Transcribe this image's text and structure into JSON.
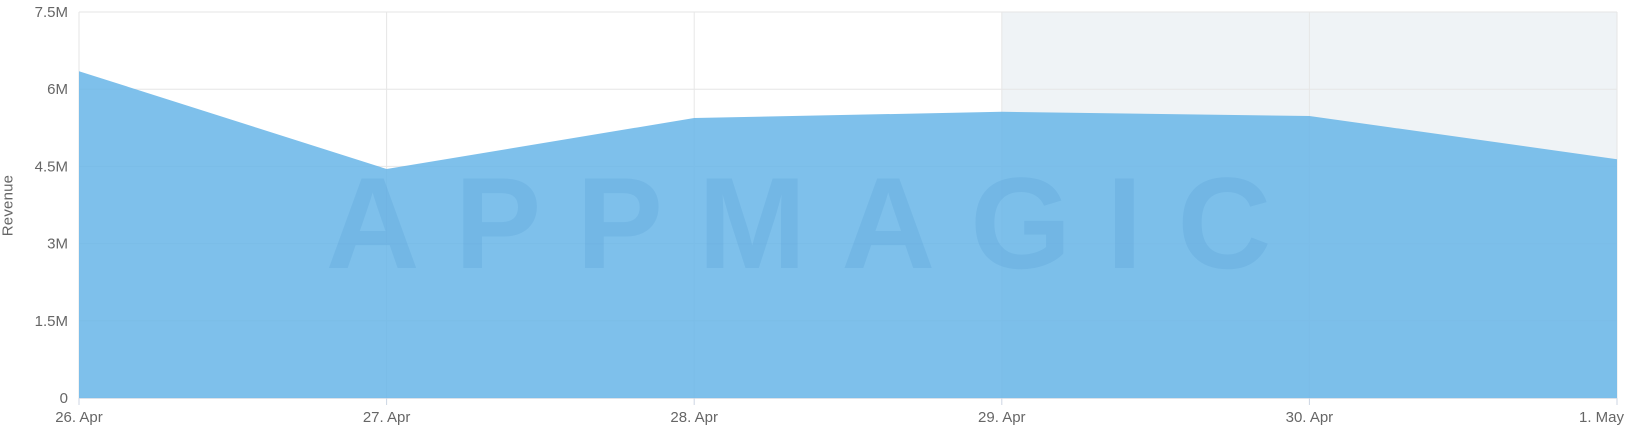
{
  "chart_data": {
    "type": "area",
    "title": "",
    "xlabel": "",
    "ylabel": "Revenue",
    "categories": [
      "26. Apr",
      "27. Apr",
      "28. Apr",
      "29. Apr",
      "30. Apr",
      "1. May"
    ],
    "series": [
      {
        "name": "Revenue",
        "values": [
          6350000,
          4450000,
          5440000,
          5560000,
          5480000,
          4640000
        ]
      }
    ],
    "ylim": [
      0,
      7500000
    ],
    "yticks": [
      {
        "value": 0,
        "label": "0"
      },
      {
        "value": 1500000,
        "label": "1.5M"
      },
      {
        "value": 3000000,
        "label": "3M"
      },
      {
        "value": 4500000,
        "label": "4.5M"
      },
      {
        "value": 6000000,
        "label": "6M"
      },
      {
        "value": 7500000,
        "label": "7.5M"
      }
    ],
    "grid": true,
    "legend": false,
    "plot_band": {
      "from_category": "29. Apr",
      "to_category": "1. May",
      "purpose": "weekend-highlight"
    },
    "watermark": "APPMAGIC",
    "colors": {
      "area_fill": "rgba(103,181,231,0.85)",
      "area_fill_flat": "#7EC0EB",
      "plot_band": "#EFF3F6",
      "gridline": "#E6E6E6",
      "axis_line": "#DCE2EA",
      "tick_mark": "#CCD6E3",
      "axis_label": "#666666",
      "watermark": "rgba(47,124,192,0.13)"
    }
  }
}
